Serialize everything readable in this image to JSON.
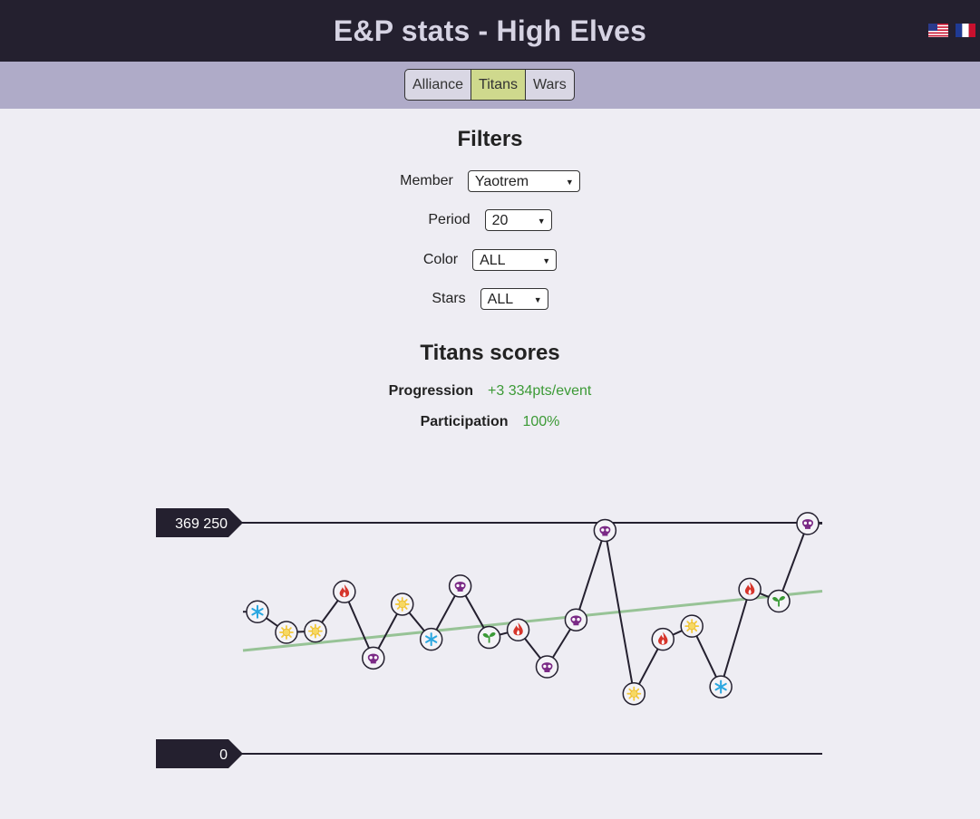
{
  "header": {
    "title": "E&P stats - High Elves",
    "flags": [
      "us-flag",
      "fr-flag"
    ]
  },
  "tabs": [
    {
      "label": "Alliance",
      "active": false
    },
    {
      "label": "Titans",
      "active": true
    },
    {
      "label": "Wars",
      "active": false
    }
  ],
  "filters": {
    "title": "Filters",
    "member": {
      "label": "Member",
      "value": "Yaotrem"
    },
    "period": {
      "label": "Period",
      "value": "20"
    },
    "color": {
      "label": "Color",
      "value": "ALL"
    },
    "stars": {
      "label": "Stars",
      "value": "ALL"
    }
  },
  "scores": {
    "title": "Titans scores",
    "progression": {
      "label": "Progression",
      "value": "+3 334pts/event"
    },
    "participation": {
      "label": "Participation",
      "value": "100%"
    }
  },
  "colors": {
    "header_bg": "#24202f",
    "nav_bg": "#afabc8",
    "active_tab": "#cfd98d",
    "positive": "#3c9a36",
    "trend": "#97c396"
  },
  "chart_data": {
    "type": "line",
    "max_label": "369 250",
    "min_label": "0",
    "ylim": [
      0,
      369250
    ],
    "points": [
      {
        "value": 227000,
        "element": "ice"
      },
      {
        "value": 194000,
        "element": "holy"
      },
      {
        "value": 196000,
        "element": "holy"
      },
      {
        "value": 259000,
        "element": "fire"
      },
      {
        "value": 153000,
        "element": "dark"
      },
      {
        "value": 239000,
        "element": "holy"
      },
      {
        "value": 183000,
        "element": "ice"
      },
      {
        "value": 268000,
        "element": "dark"
      },
      {
        "value": 186000,
        "element": "nature"
      },
      {
        "value": 198000,
        "element": "fire"
      },
      {
        "value": 139000,
        "element": "dark"
      },
      {
        "value": 214000,
        "element": "dark"
      },
      {
        "value": 357000,
        "element": "dark"
      },
      {
        "value": 96000,
        "element": "holy"
      },
      {
        "value": 183000,
        "element": "fire"
      },
      {
        "value": 204000,
        "element": "holy"
      },
      {
        "value": 107000,
        "element": "ice"
      },
      {
        "value": 263000,
        "element": "fire"
      },
      {
        "value": 244000,
        "element": "nature"
      },
      {
        "value": 368000,
        "element": "dark"
      }
    ],
    "trend": {
      "start": 165000,
      "end": 260000
    }
  }
}
